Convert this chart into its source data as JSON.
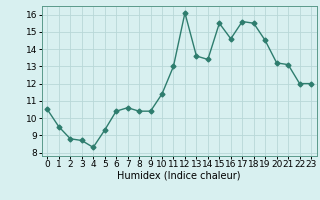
{
  "x": [
    0,
    1,
    2,
    3,
    4,
    5,
    6,
    7,
    8,
    9,
    10,
    11,
    12,
    13,
    14,
    15,
    16,
    17,
    18,
    19,
    20,
    21,
    22,
    23
  ],
  "y": [
    10.5,
    9.5,
    8.8,
    8.7,
    8.3,
    9.3,
    10.4,
    10.6,
    10.4,
    10.4,
    11.4,
    13.0,
    16.1,
    13.6,
    13.4,
    15.5,
    14.6,
    15.6,
    15.5,
    14.5,
    13.2,
    13.1,
    12.0,
    12.0
  ],
  "xlim": [
    -0.5,
    23.5
  ],
  "ylim": [
    7.8,
    16.5
  ],
  "xticks": [
    0,
    1,
    2,
    3,
    4,
    5,
    6,
    7,
    8,
    9,
    10,
    11,
    12,
    13,
    14,
    15,
    16,
    17,
    18,
    19,
    20,
    21,
    22,
    23
  ],
  "yticks": [
    8,
    9,
    10,
    11,
    12,
    13,
    14,
    15,
    16
  ],
  "xlabel": "Humidex (Indice chaleur)",
  "line_color": "#2e7d6e",
  "bg_color": "#d8f0f0",
  "grid_color": "#b8d8d8",
  "marker": "D",
  "marker_size": 2.5,
  "linewidth": 1.0,
  "xlabel_fontsize": 7,
  "tick_fontsize": 6.5
}
